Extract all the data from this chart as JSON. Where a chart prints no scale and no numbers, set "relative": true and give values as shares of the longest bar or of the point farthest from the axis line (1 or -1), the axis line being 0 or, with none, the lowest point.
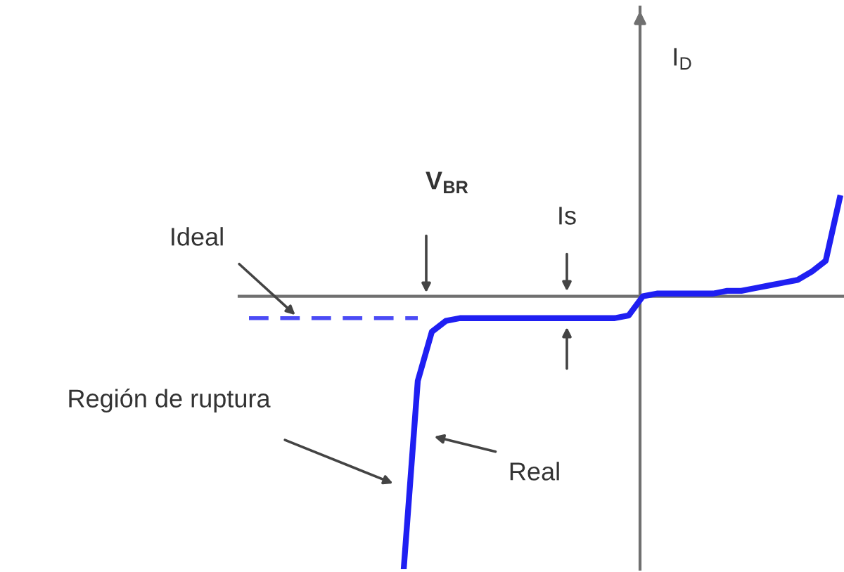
{
  "chart_data": {
    "type": "line",
    "relative": true,
    "categories": [
      null,
      null,
      null,
      null,
      null,
      null,
      null,
      null,
      null,
      null,
      null,
      null,
      null,
      null,
      null,
      null,
      null,
      null,
      null,
      null,
      null,
      null,
      null,
      null,
      null,
      null,
      null,
      null,
      null,
      null,
      null,
      null,
      null,
      null,
      null,
      null,
      null,
      null,
      null,
      null,
      null,
      null,
      null
    ],
    "series": [
      {
        "color": "#4b4bf5",
        "line_style": "dashed",
        "values": [
          -0.08,
          -0.08,
          -0.08,
          -0.08,
          -0.08,
          -0.08,
          -0.08,
          -0.08,
          -0.08,
          -0.08,
          -0.08,
          -0.08,
          -0.08,
          null,
          null,
          null,
          null,
          null,
          null,
          null,
          null,
          null,
          null,
          null,
          null,
          null,
          null,
          null,
          null,
          null,
          null,
          null,
          null,
          null,
          null,
          null,
          null,
          null,
          null,
          null,
          null,
          null,
          null
        ]
      },
      {
        "color": "#1f1ff2",
        "line_style": "solid",
        "values": [
          null,
          null,
          null,
          null,
          null,
          null,
          null,
          null,
          null,
          null,
          null,
          -1.0,
          -0.31,
          -0.13,
          -0.09,
          -0.08,
          -0.08,
          -0.08,
          -0.08,
          -0.08,
          -0.08,
          -0.08,
          -0.08,
          -0.08,
          -0.08,
          -0.08,
          -0.08,
          -0.07,
          0,
          0.01,
          0.01,
          0.01,
          0.01,
          0.01,
          0.02,
          0.02,
          0.03,
          0.04,
          0.05,
          0.06,
          0.09,
          0.13,
          0.36
        ]
      }
    ],
    "annotations": [
      "V$_{BR}$",
      "Is",
      "Región de ruptura",
      "Ideal",
      "Real",
      "I$_{D}$"
    ],
    "marker": "none"
  }
}
